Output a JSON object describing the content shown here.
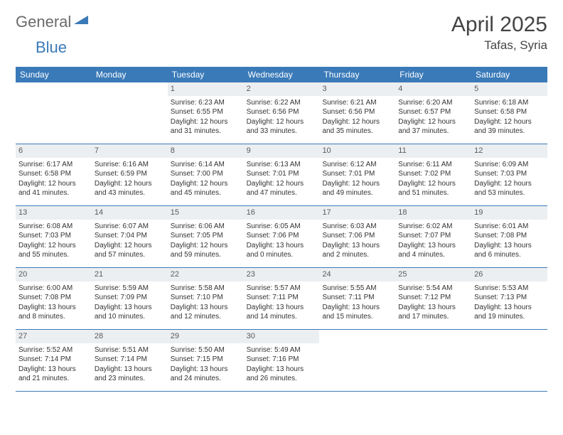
{
  "logo": {
    "part1": "General",
    "part2": "Blue"
  },
  "title": "April 2025",
  "location": "Tafas, Syria",
  "colors": {
    "header_bg": "#3a7ab8",
    "header_text": "#ffffff",
    "daynum_bg": "#eceff1",
    "border": "#3a7ab8",
    "logo_gray": "#6a6a6a",
    "logo_blue": "#3a7ab8"
  },
  "weekdays": [
    "Sunday",
    "Monday",
    "Tuesday",
    "Wednesday",
    "Thursday",
    "Friday",
    "Saturday"
  ],
  "weeks": [
    [
      {
        "empty": true
      },
      {
        "empty": true
      },
      {
        "num": "1",
        "sunrise": "Sunrise: 6:23 AM",
        "sunset": "Sunset: 6:55 PM",
        "day1": "Daylight: 12 hours",
        "day2": "and 31 minutes."
      },
      {
        "num": "2",
        "sunrise": "Sunrise: 6:22 AM",
        "sunset": "Sunset: 6:56 PM",
        "day1": "Daylight: 12 hours",
        "day2": "and 33 minutes."
      },
      {
        "num": "3",
        "sunrise": "Sunrise: 6:21 AM",
        "sunset": "Sunset: 6:56 PM",
        "day1": "Daylight: 12 hours",
        "day2": "and 35 minutes."
      },
      {
        "num": "4",
        "sunrise": "Sunrise: 6:20 AM",
        "sunset": "Sunset: 6:57 PM",
        "day1": "Daylight: 12 hours",
        "day2": "and 37 minutes."
      },
      {
        "num": "5",
        "sunrise": "Sunrise: 6:18 AM",
        "sunset": "Sunset: 6:58 PM",
        "day1": "Daylight: 12 hours",
        "day2": "and 39 minutes."
      }
    ],
    [
      {
        "num": "6",
        "sunrise": "Sunrise: 6:17 AM",
        "sunset": "Sunset: 6:58 PM",
        "day1": "Daylight: 12 hours",
        "day2": "and 41 minutes."
      },
      {
        "num": "7",
        "sunrise": "Sunrise: 6:16 AM",
        "sunset": "Sunset: 6:59 PM",
        "day1": "Daylight: 12 hours",
        "day2": "and 43 minutes."
      },
      {
        "num": "8",
        "sunrise": "Sunrise: 6:14 AM",
        "sunset": "Sunset: 7:00 PM",
        "day1": "Daylight: 12 hours",
        "day2": "and 45 minutes."
      },
      {
        "num": "9",
        "sunrise": "Sunrise: 6:13 AM",
        "sunset": "Sunset: 7:01 PM",
        "day1": "Daylight: 12 hours",
        "day2": "and 47 minutes."
      },
      {
        "num": "10",
        "sunrise": "Sunrise: 6:12 AM",
        "sunset": "Sunset: 7:01 PM",
        "day1": "Daylight: 12 hours",
        "day2": "and 49 minutes."
      },
      {
        "num": "11",
        "sunrise": "Sunrise: 6:11 AM",
        "sunset": "Sunset: 7:02 PM",
        "day1": "Daylight: 12 hours",
        "day2": "and 51 minutes."
      },
      {
        "num": "12",
        "sunrise": "Sunrise: 6:09 AM",
        "sunset": "Sunset: 7:03 PM",
        "day1": "Daylight: 12 hours",
        "day2": "and 53 minutes."
      }
    ],
    [
      {
        "num": "13",
        "sunrise": "Sunrise: 6:08 AM",
        "sunset": "Sunset: 7:03 PM",
        "day1": "Daylight: 12 hours",
        "day2": "and 55 minutes."
      },
      {
        "num": "14",
        "sunrise": "Sunrise: 6:07 AM",
        "sunset": "Sunset: 7:04 PM",
        "day1": "Daylight: 12 hours",
        "day2": "and 57 minutes."
      },
      {
        "num": "15",
        "sunrise": "Sunrise: 6:06 AM",
        "sunset": "Sunset: 7:05 PM",
        "day1": "Daylight: 12 hours",
        "day2": "and 59 minutes."
      },
      {
        "num": "16",
        "sunrise": "Sunrise: 6:05 AM",
        "sunset": "Sunset: 7:06 PM",
        "day1": "Daylight: 13 hours",
        "day2": "and 0 minutes."
      },
      {
        "num": "17",
        "sunrise": "Sunrise: 6:03 AM",
        "sunset": "Sunset: 7:06 PM",
        "day1": "Daylight: 13 hours",
        "day2": "and 2 minutes."
      },
      {
        "num": "18",
        "sunrise": "Sunrise: 6:02 AM",
        "sunset": "Sunset: 7:07 PM",
        "day1": "Daylight: 13 hours",
        "day2": "and 4 minutes."
      },
      {
        "num": "19",
        "sunrise": "Sunrise: 6:01 AM",
        "sunset": "Sunset: 7:08 PM",
        "day1": "Daylight: 13 hours",
        "day2": "and 6 minutes."
      }
    ],
    [
      {
        "num": "20",
        "sunrise": "Sunrise: 6:00 AM",
        "sunset": "Sunset: 7:08 PM",
        "day1": "Daylight: 13 hours",
        "day2": "and 8 minutes."
      },
      {
        "num": "21",
        "sunrise": "Sunrise: 5:59 AM",
        "sunset": "Sunset: 7:09 PM",
        "day1": "Daylight: 13 hours",
        "day2": "and 10 minutes."
      },
      {
        "num": "22",
        "sunrise": "Sunrise: 5:58 AM",
        "sunset": "Sunset: 7:10 PM",
        "day1": "Daylight: 13 hours",
        "day2": "and 12 minutes."
      },
      {
        "num": "23",
        "sunrise": "Sunrise: 5:57 AM",
        "sunset": "Sunset: 7:11 PM",
        "day1": "Daylight: 13 hours",
        "day2": "and 14 minutes."
      },
      {
        "num": "24",
        "sunrise": "Sunrise: 5:55 AM",
        "sunset": "Sunset: 7:11 PM",
        "day1": "Daylight: 13 hours",
        "day2": "and 15 minutes."
      },
      {
        "num": "25",
        "sunrise": "Sunrise: 5:54 AM",
        "sunset": "Sunset: 7:12 PM",
        "day1": "Daylight: 13 hours",
        "day2": "and 17 minutes."
      },
      {
        "num": "26",
        "sunrise": "Sunrise: 5:53 AM",
        "sunset": "Sunset: 7:13 PM",
        "day1": "Daylight: 13 hours",
        "day2": "and 19 minutes."
      }
    ],
    [
      {
        "num": "27",
        "sunrise": "Sunrise: 5:52 AM",
        "sunset": "Sunset: 7:14 PM",
        "day1": "Daylight: 13 hours",
        "day2": "and 21 minutes."
      },
      {
        "num": "28",
        "sunrise": "Sunrise: 5:51 AM",
        "sunset": "Sunset: 7:14 PM",
        "day1": "Daylight: 13 hours",
        "day2": "and 23 minutes."
      },
      {
        "num": "29",
        "sunrise": "Sunrise: 5:50 AM",
        "sunset": "Sunset: 7:15 PM",
        "day1": "Daylight: 13 hours",
        "day2": "and 24 minutes."
      },
      {
        "num": "30",
        "sunrise": "Sunrise: 5:49 AM",
        "sunset": "Sunset: 7:16 PM",
        "day1": "Daylight: 13 hours",
        "day2": "and 26 minutes."
      },
      {
        "empty": true
      },
      {
        "empty": true
      },
      {
        "empty": true
      }
    ]
  ]
}
